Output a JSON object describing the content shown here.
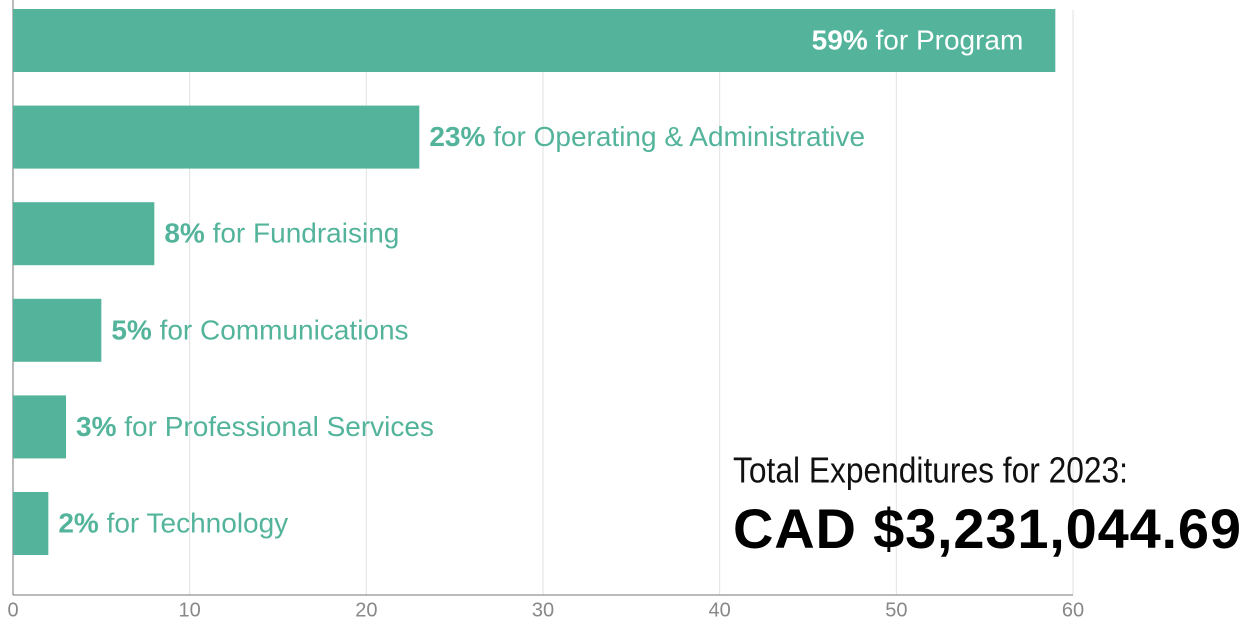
{
  "chart_data": {
    "type": "bar",
    "orientation": "horizontal",
    "categories": [
      "for Program",
      "for Operating & Administrative",
      "for Fundraising",
      "for Communications",
      "for Professional Services",
      "for Technology"
    ],
    "values": [
      59,
      23,
      8,
      5,
      3,
      2
    ],
    "value_labels": [
      "59%",
      "23%",
      "8%",
      "5%",
      "3%",
      "2%"
    ],
    "color": "#53b49b",
    "xlim": [
      0,
      60
    ],
    "xticks": [
      0,
      10,
      20,
      30,
      40,
      50,
      60
    ],
    "grid": true,
    "annotations": [
      "Total Expenditures for 2023:",
      "CAD $3,231,044.69"
    ]
  }
}
